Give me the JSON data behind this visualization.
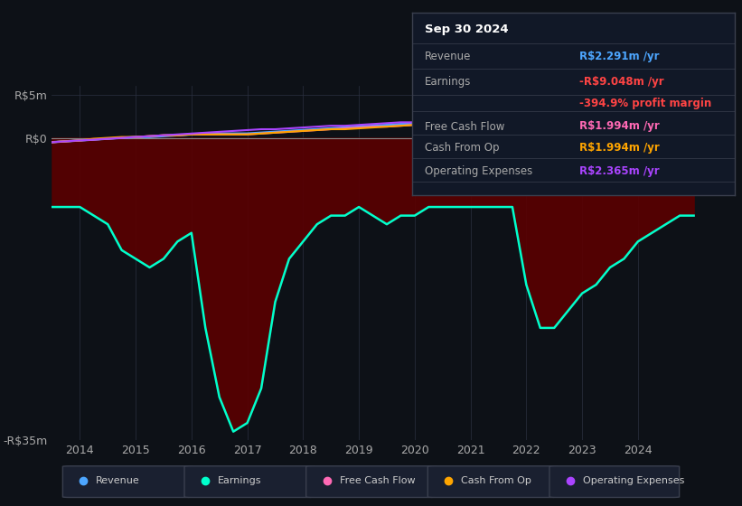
{
  "bg_color": "#0d1117",
  "plot_bg_color": "#0d1117",
  "ylim": [
    -35,
    6
  ],
  "xlim": [
    2013.5,
    2025.2
  ],
  "xticks": [
    2014,
    2015,
    2016,
    2017,
    2018,
    2019,
    2020,
    2021,
    2022,
    2023,
    2024
  ],
  "grid_color": "#2a3040",
  "zero_line_color": "#888888",
  "revenue_color": "#4da6ff",
  "earnings_color": "#00ffcc",
  "fcf_color": "#ff69b4",
  "cashfromop_color": "#ffa500",
  "opex_color": "#aa44ff",
  "fill_color": "#5a0000",
  "years": [
    2013.5,
    2014,
    2014.25,
    2014.5,
    2014.75,
    2015,
    2015.25,
    2015.5,
    2015.75,
    2016,
    2016.25,
    2016.5,
    2016.75,
    2017,
    2017.25,
    2017.5,
    2017.75,
    2018,
    2018.25,
    2018.5,
    2018.75,
    2019,
    2019.25,
    2019.5,
    2019.75,
    2020,
    2020.25,
    2020.5,
    2020.75,
    2021,
    2021.25,
    2021.5,
    2021.75,
    2022,
    2022.25,
    2022.5,
    2022.75,
    2023,
    2023.25,
    2023.5,
    2023.75,
    2024,
    2024.25,
    2024.5,
    2024.75,
    2025.0
  ],
  "earnings": [
    -8,
    -8,
    -9,
    -10,
    -13,
    -14,
    -15,
    -14,
    -12,
    -11,
    -22,
    -30,
    -34,
    -33,
    -29,
    -19,
    -14,
    -12,
    -10,
    -9,
    -9,
    -8,
    -9,
    -10,
    -9,
    -9,
    -8,
    -8,
    -8,
    -8,
    -8,
    -8,
    -8,
    -17,
    -22,
    -22,
    -20,
    -18,
    -17,
    -15,
    -14,
    -12,
    -11,
    -10,
    -9,
    -9
  ],
  "revenue": [
    -0.5,
    -0.3,
    -0.2,
    -0.1,
    0,
    0.1,
    0.1,
    0.2,
    0.3,
    0.4,
    0.5,
    0.5,
    0.5,
    0.5,
    0.6,
    0.7,
    0.8,
    0.9,
    1.0,
    1.1,
    1.2,
    1.3,
    1.4,
    1.5,
    1.6,
    1.7,
    1.7,
    1.7,
    1.8,
    1.8,
    1.9,
    1.9,
    2.0,
    2.0,
    2.0,
    2.0,
    2.0,
    2.1,
    2.1,
    2.1,
    2.1,
    2.2,
    2.2,
    2.2,
    2.3,
    2.3
  ],
  "fcf": [
    -0.5,
    -0.3,
    -0.2,
    -0.1,
    0,
    0.1,
    0.2,
    0.3,
    0.3,
    0.4,
    0.4,
    0.4,
    0.4,
    0.4,
    0.5,
    0.6,
    0.7,
    0.8,
    0.9,
    1.0,
    1.1,
    1.2,
    1.3,
    1.3,
    1.4,
    1.5,
    1.5,
    1.6,
    1.6,
    1.7,
    1.7,
    1.8,
    1.8,
    1.9,
    1.9,
    1.95,
    1.95,
    2.0,
    2.0,
    2.0,
    1.95,
    2.0,
    2.0,
    1.9,
    2.0,
    2.0
  ],
  "cashfromop": [
    -0.5,
    -0.3,
    -0.1,
    0,
    0.1,
    0.1,
    0.2,
    0.3,
    0.3,
    0.4,
    0.4,
    0.4,
    0.4,
    0.4,
    0.5,
    0.6,
    0.7,
    0.8,
    0.9,
    1.0,
    1.0,
    1.1,
    1.2,
    1.3,
    1.4,
    1.5,
    1.5,
    1.6,
    1.6,
    1.7,
    1.7,
    1.8,
    1.8,
    1.8,
    1.85,
    1.9,
    1.9,
    1.9,
    1.95,
    1.95,
    1.95,
    2.0,
    2.0,
    1.95,
    2.0,
    2.0
  ],
  "opex": [
    -0.5,
    -0.3,
    -0.2,
    -0.1,
    0.0,
    0.1,
    0.2,
    0.3,
    0.4,
    0.5,
    0.6,
    0.7,
    0.8,
    0.9,
    1.0,
    1.0,
    1.1,
    1.2,
    1.3,
    1.4,
    1.4,
    1.5,
    1.6,
    1.7,
    1.8,
    1.8,
    1.9,
    2.0,
    2.1,
    2.1,
    2.2,
    2.2,
    2.3,
    2.3,
    2.3,
    2.3,
    2.3,
    2.3,
    2.3,
    2.3,
    2.3,
    2.35,
    2.35,
    2.35,
    2.37,
    2.37
  ],
  "legend_items": [
    {
      "label": "Revenue",
      "color": "#4da6ff"
    },
    {
      "label": "Earnings",
      "color": "#00ffcc"
    },
    {
      "label": "Free Cash Flow",
      "color": "#ff69b4"
    },
    {
      "label": "Cash From Op",
      "color": "#ffa500"
    },
    {
      "label": "Operating Expenses",
      "color": "#aa44ff"
    }
  ],
  "info_title": "Sep 30 2024",
  "info_rows": [
    {
      "label": "Revenue",
      "value": "R$2.291m /yr",
      "value_color": "#4da6ff",
      "label_color": "#aaaaaa"
    },
    {
      "label": "Earnings",
      "value": "-R$9.048m /yr",
      "value_color": "#ff4444",
      "label_color": "#aaaaaa"
    },
    {
      "label": "",
      "value": "-394.9% profit margin",
      "value_color": "#ff4444",
      "label_color": "#aaaaaa"
    },
    {
      "label": "Free Cash Flow",
      "value": "R$1.994m /yr",
      "value_color": "#ff69b4",
      "label_color": "#aaaaaa"
    },
    {
      "label": "Cash From Op",
      "value": "R$1.994m /yr",
      "value_color": "#ffa500",
      "label_color": "#aaaaaa"
    },
    {
      "label": "Operating Expenses",
      "value": "R$2.365m /yr",
      "value_color": "#aa44ff",
      "label_color": "#aaaaaa"
    }
  ]
}
